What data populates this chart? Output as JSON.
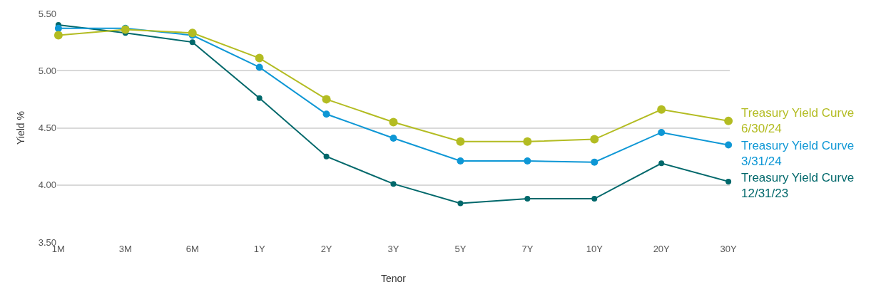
{
  "chart_data": {
    "type": "line",
    "xlabel": "Tenor",
    "ylabel": "Yield %",
    "categories": [
      "1M",
      "3M",
      "6M",
      "1Y",
      "2Y",
      "3Y",
      "5Y",
      "7Y",
      "10Y",
      "20Y",
      "30Y"
    ],
    "series": [
      {
        "name": "Treasury Yield Curve 6/30/24",
        "color": "#b3bc22",
        "values": [
          5.31,
          5.36,
          5.33,
          5.11,
          4.75,
          4.55,
          4.38,
          4.38,
          4.4,
          4.66,
          4.56
        ]
      },
      {
        "name": "Treasury Yield Curve 3/31/24",
        "color": "#0e97d5",
        "values": [
          5.37,
          5.37,
          5.31,
          5.03,
          4.62,
          4.41,
          4.21,
          4.21,
          4.2,
          4.46,
          4.35
        ]
      },
      {
        "name": "Treasury Yield Curve 12/31/23",
        "color": "#01686b",
        "values": [
          5.4,
          5.33,
          5.25,
          4.76,
          4.25,
          4.01,
          3.84,
          3.88,
          3.88,
          4.19,
          4.03
        ]
      }
    ],
    "ylim": [
      3.5,
      5.5
    ],
    "yticks": [
      {
        "value": 3.5,
        "label": "3.50"
      },
      {
        "value": 4,
        "label": "4.00"
      },
      {
        "value": 4.5,
        "label": "4.50"
      },
      {
        "value": 5,
        "label": "5.00"
      },
      {
        "value": 5.5,
        "label": "5.50"
      }
    ],
    "grid": "y",
    "legend": false,
    "marker": "circle",
    "line_style": "solid"
  }
}
